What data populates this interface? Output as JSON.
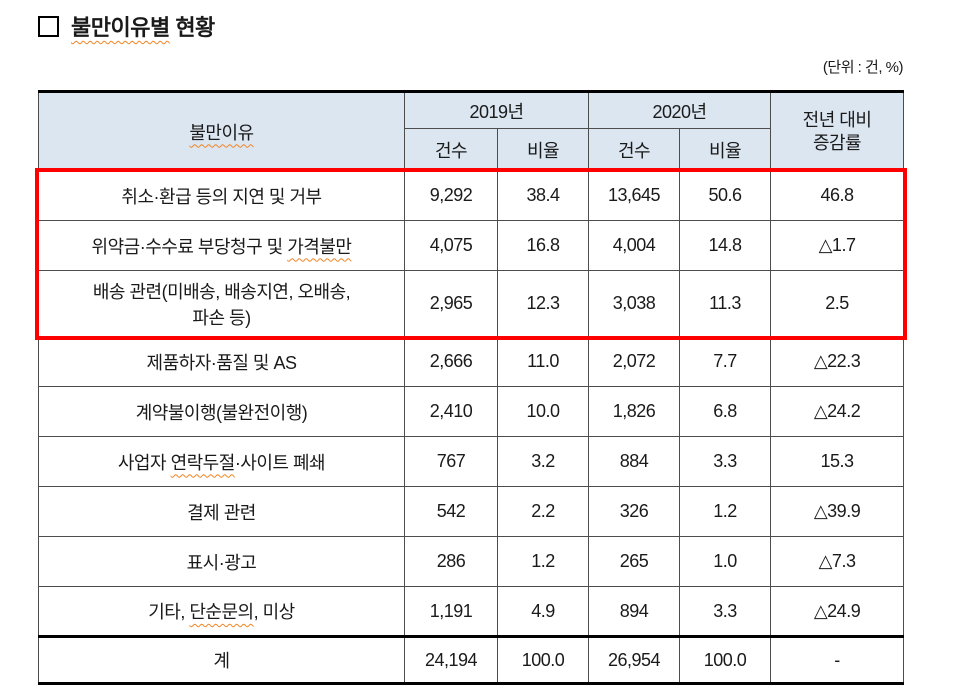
{
  "title": {
    "bullet": "square-outline",
    "underlined_text": "불만이유별",
    "rest_text": " 현황"
  },
  "unit_note": "(단위 : 건, %)",
  "table": {
    "headers": {
      "reason": "불만이유",
      "year_2019": "2019년",
      "year_2020": "2020년",
      "count": "건수",
      "ratio": "비율",
      "yoy_line1": "전년 대비",
      "yoy_line2": "증감률"
    },
    "rows": [
      {
        "reason_parts": [
          {
            "text": "취소·환급 등의 지연 및 거부"
          }
        ],
        "cells": [
          "9,292",
          "38.4",
          "13,645",
          "50.6",
          "46.8"
        ],
        "highlighted": true
      },
      {
        "reason_parts": [
          {
            "text": "위약금·수수료 부당청구 및 "
          },
          {
            "text": "가격불만",
            "misspell": true
          }
        ],
        "cells": [
          "4,075",
          "16.8",
          "4,004",
          "14.8",
          "△1.7"
        ],
        "highlighted": true
      },
      {
        "reason_parts": [
          {
            "text": "배송 관련(미배송, 배송지연, 오배송,"
          },
          {
            "br": true
          },
          {
            "text": "파손 등)"
          }
        ],
        "cells": [
          "2,965",
          "12.3",
          "3,038",
          "11.3",
          "2.5"
        ],
        "highlighted": true
      },
      {
        "reason_parts": [
          {
            "text": "제품하자·품질 및 AS"
          }
        ],
        "cells": [
          "2,666",
          "11.0",
          "2,072",
          "7.7",
          "△22.3"
        ],
        "highlighted": false
      },
      {
        "reason_parts": [
          {
            "text": "계약불이행(불완전이행)"
          }
        ],
        "cells": [
          "2,410",
          "10.0",
          "1,826",
          "6.8",
          "△24.2"
        ],
        "highlighted": false
      },
      {
        "reason_parts": [
          {
            "text": "사업자 "
          },
          {
            "text": "연락두절",
            "misspell": true
          },
          {
            "text": "·사이트 폐쇄"
          }
        ],
        "cells": [
          "767",
          "3.2",
          "884",
          "3.3",
          "15.3"
        ],
        "highlighted": false
      },
      {
        "reason_parts": [
          {
            "text": "결제 관련"
          }
        ],
        "cells": [
          "542",
          "2.2",
          "326",
          "1.2",
          "△39.9"
        ],
        "highlighted": false
      },
      {
        "reason_parts": [
          {
            "text": "표시·광고"
          }
        ],
        "cells": [
          "286",
          "1.2",
          "265",
          "1.0",
          "△7.3"
        ],
        "highlighted": false
      },
      {
        "reason_parts": [
          {
            "text": "기타, "
          },
          {
            "text": "단순문의",
            "misspell": true
          },
          {
            "text": ", 미상"
          }
        ],
        "cells": [
          "1,191",
          "4.9",
          "894",
          "3.3",
          "△24.9"
        ],
        "highlighted": false
      }
    ],
    "total_row": {
      "label": "계",
      "cells": [
        "24,194",
        "100.0",
        "26,954",
        "100.0",
        "-"
      ]
    }
  },
  "colors": {
    "header_bg": "#dce6f1",
    "highlight_border": "#ff0000",
    "proofing_underline": "#f08423",
    "text": "#1a1a1a"
  }
}
